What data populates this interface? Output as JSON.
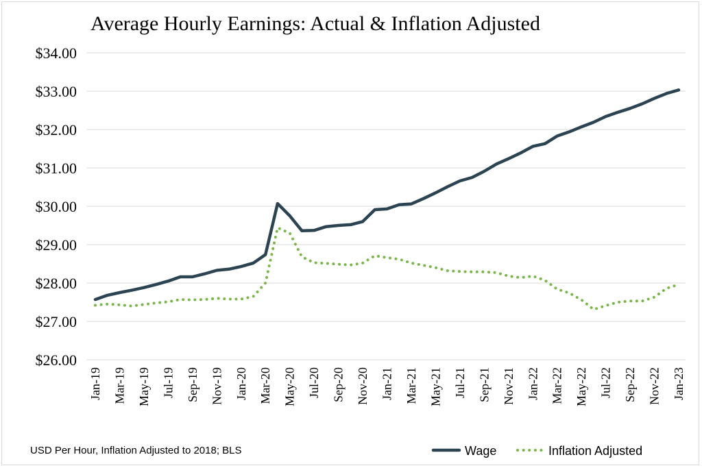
{
  "chart_data": {
    "type": "line",
    "title": "Average Hourly Earnings: Actual & Inflation Adjusted",
    "source_note": "USD Per Hour, Inflation Adjusted to 2018; BLS",
    "ylim": [
      26,
      34
    ],
    "y_ticks": [
      "$26.00",
      "$27.00",
      "$28.00",
      "$29.00",
      "$30.00",
      "$31.00",
      "$32.00",
      "$33.00",
      "$34.00"
    ],
    "y_tick_values": [
      26,
      27,
      28,
      29,
      30,
      31,
      32,
      33,
      34
    ],
    "x": [
      "Jan-19",
      "Feb-19",
      "Mar-19",
      "Apr-19",
      "May-19",
      "Jun-19",
      "Jul-19",
      "Aug-19",
      "Sep-19",
      "Oct-19",
      "Nov-19",
      "Dec-19",
      "Jan-20",
      "Feb-20",
      "Mar-20",
      "Apr-20",
      "May-20",
      "Jun-20",
      "Jul-20",
      "Aug-20",
      "Sep-20",
      "Oct-20",
      "Nov-20",
      "Dec-20",
      "Jan-21",
      "Feb-21",
      "Mar-21",
      "Apr-21",
      "May-21",
      "Jun-21",
      "Jul-21",
      "Aug-21",
      "Sep-21",
      "Oct-21",
      "Nov-21",
      "Dec-21",
      "Jan-22",
      "Feb-22",
      "Mar-22",
      "Apr-22",
      "May-22",
      "Jun-22",
      "Jul-22",
      "Aug-22",
      "Sep-22",
      "Oct-22",
      "Nov-22",
      "Dec-22",
      "Jan-23"
    ],
    "x_tick_labels": [
      "Jan-19",
      "Mar-19",
      "May-19",
      "Jul-19",
      "Sep-19",
      "Nov-19",
      "Jan-20",
      "Mar-20",
      "May-20",
      "Jul-20",
      "Sep-20",
      "Nov-20",
      "Jan-21",
      "Mar-21",
      "May-21",
      "Jul-21",
      "Sep-21",
      "Nov-21",
      "Jan-22",
      "Mar-22",
      "May-22",
      "Jul-22",
      "Sep-22",
      "Nov-22",
      "Jan-23"
    ],
    "grid": true,
    "legend_position": "bottom-right",
    "series": [
      {
        "name": "Wage",
        "style": "solid",
        "color": "#2c4452",
        "values": [
          27.57,
          27.68,
          27.75,
          27.81,
          27.88,
          27.96,
          28.05,
          28.16,
          28.16,
          28.24,
          28.33,
          28.36,
          28.43,
          28.52,
          28.74,
          30.07,
          29.75,
          29.36,
          29.37,
          29.47,
          29.5,
          29.52,
          29.6,
          29.91,
          29.93,
          30.04,
          30.06,
          30.2,
          30.35,
          30.51,
          30.66,
          30.75,
          30.91,
          31.1,
          31.24,
          31.39,
          31.56,
          31.63,
          31.83,
          31.94,
          32.07,
          32.19,
          32.34,
          32.45,
          32.55,
          32.67,
          32.81,
          32.94,
          33.03
        ]
      },
      {
        "name": "Inflation Adjusted",
        "style": "dotted",
        "color": "#7ab648",
        "values": [
          27.42,
          27.45,
          27.43,
          27.4,
          27.44,
          27.48,
          27.51,
          27.57,
          27.56,
          27.57,
          27.6,
          27.58,
          27.58,
          27.65,
          28.0,
          29.44,
          29.3,
          28.68,
          28.53,
          28.51,
          28.49,
          28.47,
          28.52,
          28.71,
          28.66,
          28.62,
          28.52,
          28.46,
          28.4,
          28.32,
          28.3,
          28.29,
          28.29,
          28.27,
          28.18,
          28.14,
          28.18,
          28.07,
          27.84,
          27.74,
          27.56,
          27.31,
          27.41,
          27.5,
          27.53,
          27.53,
          27.63,
          27.86,
          27.96
        ]
      }
    ]
  }
}
